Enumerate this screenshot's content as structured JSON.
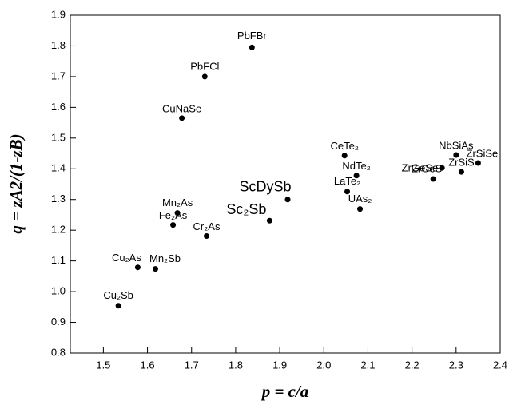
{
  "chart_data": {
    "type": "scatter",
    "x_label": "p = c/a",
    "y_label": "q = zA2/(1-zB)",
    "xlim": [
      1.425,
      2.4
    ],
    "ylim": [
      0.8,
      1.9
    ],
    "xticks": [
      1.5,
      1.6,
      1.7,
      1.8,
      1.9,
      {
        "value": 2.0,
        "label": "2.0"
      },
      2.1,
      2.2,
      2.3,
      2.4
    ],
    "yticks": [
      {
        "value": 0.8,
        "label": "0.8"
      },
      {
        "value": 0.9,
        "label": "0.9"
      },
      {
        "value": 1.0,
        "label": "1.0"
      },
      1.1,
      1.2,
      1.3,
      1.4,
      1.5,
      1.6,
      1.7,
      1.8,
      1.9
    ],
    "color": "#000000",
    "series": [
      {
        "name": null,
        "labels": [
          "PbFBr",
          "PbFCl",
          "CuNaSe",
          "Mn₂As",
          "Fe₂As",
          "Cr₂As",
          "Sc₂Sb",
          "ScDySb",
          "CeTe₂",
          "NdTe₂",
          "LaTe₂",
          "UAs₂",
          "NbSiAs",
          "ZrSiSe",
          "ZrGeSe",
          "ZrSiS",
          "ZrGeS",
          "Cu₂As",
          "Mn₂Sb",
          "Cu₂Sb"
        ],
        "x": [
          1.837,
          1.73,
          1.678,
          1.668,
          1.658,
          1.734,
          1.877,
          1.918,
          2.047,
          2.074,
          2.053,
          2.082,
          2.3,
          2.35,
          2.268,
          2.312,
          2.248,
          1.578,
          1.618,
          1.534
        ],
        "values": [
          1.795,
          1.7,
          1.565,
          1.256,
          1.217,
          1.181,
          1.231,
          1.3,
          1.443,
          1.378,
          1.326,
          1.269,
          1.445,
          1.419,
          1.403,
          1.39,
          1.367,
          1.079,
          1.074,
          0.954
        ]
      }
    ]
  }
}
